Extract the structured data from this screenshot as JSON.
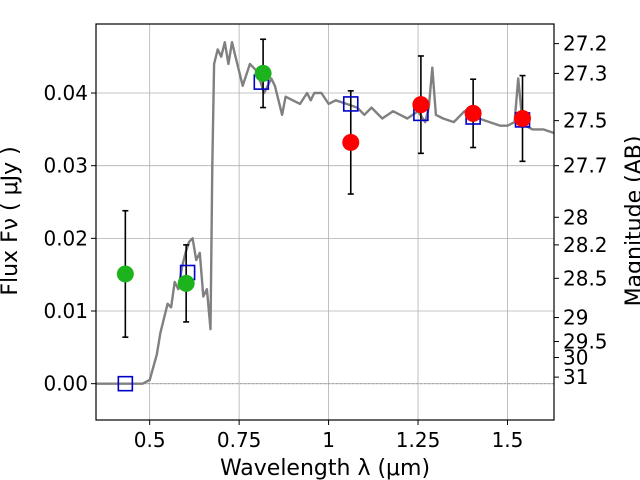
{
  "chart_data": {
    "type": "scatter",
    "xlabel": "Wavelength  λ (μm)",
    "ylabel": "Flux  Fν  ( μJy )",
    "y2label": "Magnitude (AB)",
    "xlim": [
      0.35,
      1.63
    ],
    "ylim": [
      -0.005,
      0.0495
    ],
    "grid": true,
    "x_ticks": [
      {
        "value": 0.5,
        "label": "0.5"
      },
      {
        "value": 0.75,
        "label": "0.75"
      },
      {
        "value": 1.0,
        "label": "1"
      },
      {
        "value": 1.25,
        "label": "1.25"
      },
      {
        "value": 1.5,
        "label": "1.5"
      }
    ],
    "y_ticks": [
      {
        "value": 0.0,
        "label": "0.00"
      },
      {
        "value": 0.01,
        "label": "0.01"
      },
      {
        "value": 0.02,
        "label": "0.02"
      },
      {
        "value": 0.03,
        "label": "0.03"
      },
      {
        "value": 0.04,
        "label": "0.04"
      }
    ],
    "mag_ticks": [
      {
        "value": 0.0468,
        "label": "27.2"
      },
      {
        "value": 0.0427,
        "label": "27.3"
      },
      {
        "value": 0.0362,
        "label": "27.5"
      },
      {
        "value": 0.03,
        "label": "27.7"
      },
      {
        "value": 0.0229,
        "label": "28"
      },
      {
        "value": 0.0191,
        "label": "28.2"
      },
      {
        "value": 0.0145,
        "label": "28.5"
      },
      {
        "value": 0.0091,
        "label": "29"
      },
      {
        "value": 0.0058,
        "label": "29.5"
      },
      {
        "value": 0.0036,
        "label": "30"
      },
      {
        "value": 0.0009,
        "label": "31"
      }
    ],
    "series": [
      {
        "name": "model spectrum",
        "kind": "line",
        "color": "#808080",
        "x": [
          0.35,
          0.48,
          0.5,
          0.52,
          0.53,
          0.54,
          0.55,
          0.56,
          0.57,
          0.58,
          0.59,
          0.6,
          0.61,
          0.62,
          0.63,
          0.64,
          0.65,
          0.66,
          0.67,
          0.675,
          0.68,
          0.69,
          0.7,
          0.71,
          0.72,
          0.73,
          0.74,
          0.75,
          0.76,
          0.78,
          0.8,
          0.82,
          0.84,
          0.85,
          0.86,
          0.87,
          0.88,
          0.9,
          0.92,
          0.94,
          0.95,
          0.96,
          0.98,
          1.0,
          1.02,
          1.05,
          1.08,
          1.1,
          1.12,
          1.15,
          1.18,
          1.2,
          1.22,
          1.25,
          1.27,
          1.28,
          1.29,
          1.3,
          1.32,
          1.35,
          1.38,
          1.4,
          1.42,
          1.45,
          1.48,
          1.5,
          1.52,
          1.53,
          1.54,
          1.55,
          1.57,
          1.6,
          1.63
        ],
        "y": [
          0.0,
          0.0,
          0.0005,
          0.004,
          0.007,
          0.009,
          0.011,
          0.0105,
          0.014,
          0.013,
          0.016,
          0.018,
          0.0195,
          0.02,
          0.017,
          0.018,
          0.012,
          0.013,
          0.0075,
          0.03,
          0.044,
          0.046,
          0.045,
          0.047,
          0.044,
          0.047,
          0.045,
          0.043,
          0.041,
          0.044,
          0.043,
          0.04,
          0.042,
          0.041,
          0.039,
          0.037,
          0.0395,
          0.039,
          0.0385,
          0.04,
          0.039,
          0.04,
          0.04,
          0.0385,
          0.039,
          0.0385,
          0.038,
          0.037,
          0.038,
          0.0365,
          0.0375,
          0.037,
          0.0365,
          0.0375,
          0.036,
          0.038,
          0.0435,
          0.037,
          0.0365,
          0.036,
          0.0375,
          0.0365,
          0.0365,
          0.036,
          0.0355,
          0.0355,
          0.036,
          0.042,
          0.037,
          0.0355,
          0.035,
          0.035,
          0.0345
        ]
      },
      {
        "name": "green points",
        "kind": "points",
        "color": "#1db31d",
        "x": [
          0.432,
          0.602,
          0.817
        ],
        "y": [
          0.0151,
          0.0138,
          0.0427
        ],
        "yerr": [
          0.0087,
          0.0053,
          0.0047
        ]
      },
      {
        "name": "red points",
        "kind": "points",
        "color": "#ff0000",
        "x": [
          1.062,
          1.258,
          1.404,
          1.542
        ],
        "y": [
          0.0332,
          0.0384,
          0.0372,
          0.0365
        ],
        "yerr": [
          0.0071,
          0.0067,
          0.0047,
          0.0059
        ]
      },
      {
        "name": "model photometry",
        "kind": "squares",
        "color": "#0000cc",
        "x": [
          0.432,
          0.606,
          0.812,
          1.062,
          1.258,
          1.404,
          1.542
        ],
        "y": [
          0.0,
          0.0153,
          0.0415,
          0.0385,
          0.0372,
          0.0367,
          0.0363
        ]
      }
    ]
  }
}
